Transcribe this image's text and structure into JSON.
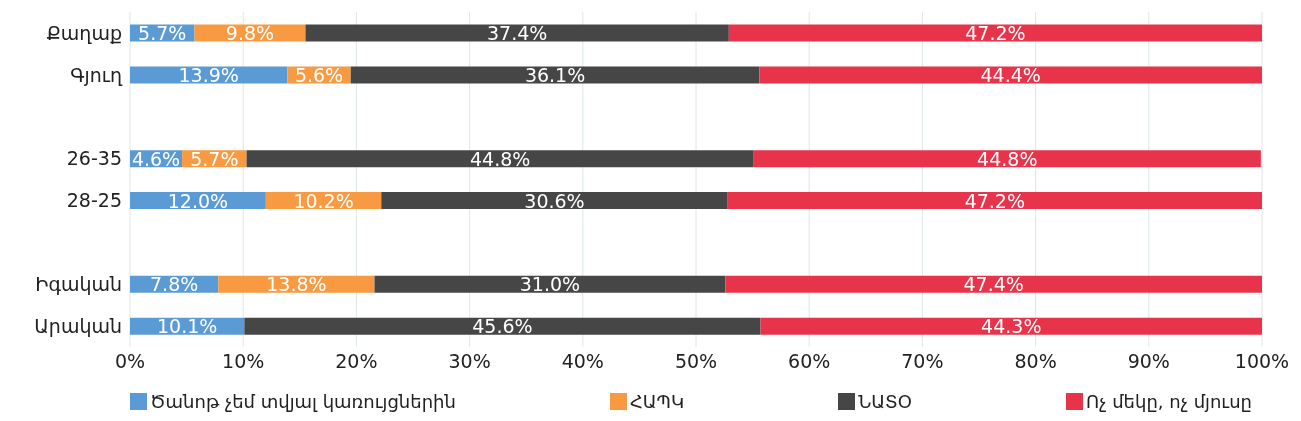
{
  "chart_data": {
    "type": "bar",
    "orientation": "horizontal",
    "stacked": true,
    "categories": [
      "Քաղաք",
      "Գյուղ",
      null,
      "26-35",
      "28-25",
      null,
      "Իգական",
      "Արական"
    ],
    "series": [
      {
        "name": "Ծանոթ չեմ տվյալ կառույցներին",
        "color": "#5b9bd5",
        "values": [
          5.7,
          13.9,
          null,
          4.6,
          12.0,
          null,
          7.8,
          10.1
        ],
        "value_labels": [
          "5.7%",
          "13.9%",
          null,
          "4.6%",
          "12.0%",
          null,
          "7.8%",
          "10.1%"
        ]
      },
      {
        "name": "ՀԱՊԿ",
        "color": "#f79a42",
        "values": [
          9.8,
          5.6,
          null,
          5.7,
          10.2,
          null,
          13.8,
          null
        ],
        "value_labels": [
          "9.8%",
          "5.6%",
          null,
          "5.7%",
          "10.2%",
          null,
          "13.8%",
          null
        ]
      },
      {
        "name": "ՆԱՏՕ",
        "color": "#464646",
        "values": [
          37.4,
          36.1,
          null,
          44.8,
          30.6,
          null,
          31.0,
          45.6
        ],
        "value_labels": [
          "37.4%",
          "36.1%",
          null,
          "44.8%",
          "30.6%",
          null,
          "31.0%",
          "45.6%"
        ]
      },
      {
        "name": "Ոչ մեկը, ոչ մյուսը",
        "color": "#e8344a",
        "values": [
          47.2,
          44.4,
          null,
          44.8,
          47.2,
          null,
          47.4,
          44.3
        ],
        "value_labels": [
          "47.2%",
          "44.4%",
          null,
          "44.8%",
          "47.2%",
          null,
          "47.4%",
          "44.3%"
        ]
      }
    ],
    "xlim": [
      0,
      100
    ],
    "xticks": [
      {
        "value": 0,
        "label": "0%"
      },
      {
        "value": 10,
        "label": "10%"
      },
      {
        "value": 20,
        "label": "20%"
      },
      {
        "value": 30,
        "label": "30%"
      },
      {
        "value": 40,
        "label": "40%"
      },
      {
        "value": 50,
        "label": "50%"
      },
      {
        "value": 60,
        "label": "60%"
      },
      {
        "value": 70,
        "label": "70%"
      },
      {
        "value": 80,
        "label": "80%"
      },
      {
        "value": 90,
        "label": "90%"
      },
      {
        "value": 100,
        "label": "100%"
      }
    ],
    "grid": "x",
    "legend": "bottom"
  }
}
